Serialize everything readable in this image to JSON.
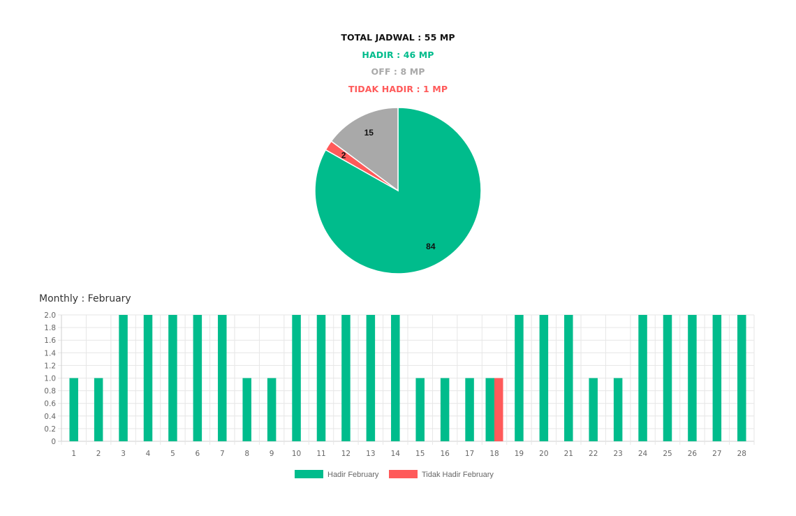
{
  "summary": {
    "total": "TOTAL JADWAL : 55 MP",
    "hadir": "HADIR : 46 MP",
    "off": "OFF : 8 MP",
    "tidak_hadir": "TIDAK HADIR : 1 MP"
  },
  "colors": {
    "hadir": "#00BC8C",
    "off": "#A9A9A9",
    "tidak_hadir": "#FF5A5A"
  },
  "monthly_title": "Monthly : February",
  "chart_data": [
    {
      "type": "pie",
      "slices": [
        {
          "label": "84",
          "value": 84,
          "color": "#00BC8C"
        },
        {
          "label": "2",
          "value": 2,
          "color": "#FF5A5A"
        },
        {
          "label": "15",
          "value": 15,
          "color": "#A9A9A9"
        }
      ]
    },
    {
      "type": "bar",
      "title": "Monthly : February",
      "categories": [
        "1",
        "2",
        "3",
        "4",
        "5",
        "6",
        "7",
        "8",
        "9",
        "10",
        "11",
        "12",
        "13",
        "14",
        "15",
        "16",
        "17",
        "18",
        "19",
        "20",
        "21",
        "22",
        "23",
        "24",
        "25",
        "26",
        "27",
        "28"
      ],
      "series": [
        {
          "name": "Hadir February",
          "color": "#00BC8C",
          "values": [
            1,
            1,
            2,
            2,
            2,
            2,
            2,
            1,
            1,
            2,
            2,
            2,
            2,
            2,
            1,
            1,
            1,
            1,
            2,
            2,
            2,
            1,
            1,
            2,
            2,
            2,
            2,
            2
          ]
        },
        {
          "name": "Tidak Hadir February",
          "color": "#FF5A5A",
          "values": [
            0,
            0,
            0,
            0,
            0,
            0,
            0,
            0,
            0,
            0,
            0,
            0,
            0,
            0,
            0,
            0,
            0,
            1,
            0,
            0,
            0,
            0,
            0,
            0,
            0,
            0,
            0,
            0
          ]
        }
      ],
      "ylim": [
        0,
        2
      ],
      "yticks": [
        "0",
        "0.2",
        "0.4",
        "0.6",
        "0.8",
        "1.0",
        "1.2",
        "1.4",
        "1.6",
        "1.8",
        "2.0"
      ],
      "grid": true,
      "legend": "bottom"
    }
  ]
}
